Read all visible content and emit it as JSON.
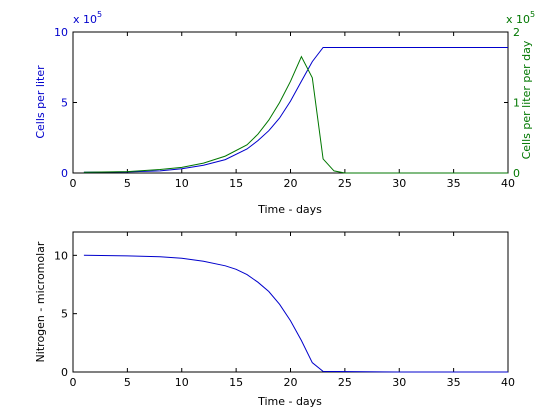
{
  "colors": {
    "series1": "#0000cc",
    "series2": "#007700",
    "axis": "#000000",
    "background": "#ffffff"
  },
  "chart_data": [
    {
      "type": "line",
      "xlabel": "Time - days",
      "ylabel_left": "Cells per liter",
      "ylabel_right": "Cells per liter per day",
      "left_multiplier": "x 10",
      "left_exponent": "5",
      "right_multiplier": "x 10",
      "right_exponent": "5",
      "xlim": [
        0,
        40
      ],
      "ylim_left": [
        0,
        10
      ],
      "ylim_right": [
        0,
        2
      ],
      "xticks": [
        0,
        5,
        10,
        15,
        20,
        25,
        30,
        35,
        40
      ],
      "yticks_left": [
        0,
        5,
        10
      ],
      "yticks_right": [
        0,
        1,
        2
      ],
      "grid": false,
      "series": [
        {
          "axis": "left",
          "color": "#0000cc",
          "x": [
            1,
            5,
            8,
            10,
            12,
            14,
            16,
            17,
            18,
            19,
            20,
            21,
            22,
            23,
            30,
            40
          ],
          "y": [
            0.05,
            0.08,
            0.15,
            0.3,
            0.55,
            0.95,
            1.7,
            2.3,
            3.0,
            3.9,
            5.1,
            6.5,
            7.9,
            8.9,
            8.9,
            8.9
          ]
        },
        {
          "axis": "right",
          "color": "#007700",
          "x": [
            1,
            5,
            8,
            10,
            12,
            14,
            16,
            17,
            18,
            19,
            20,
            21,
            22,
            23,
            24,
            25,
            40
          ],
          "y": [
            0.01,
            0.02,
            0.05,
            0.08,
            0.14,
            0.24,
            0.4,
            0.55,
            0.75,
            1.0,
            1.3,
            1.65,
            1.35,
            0.2,
            0.03,
            0.0,
            0.0
          ]
        }
      ]
    },
    {
      "type": "line",
      "xlabel": "Time - days",
      "ylabel": "Nitrogen - micromolar",
      "xlim": [
        0,
        40
      ],
      "ylim": [
        0,
        12
      ],
      "xticks": [
        0,
        5,
        10,
        15,
        20,
        25,
        30,
        35,
        40
      ],
      "yticks": [
        0,
        5,
        10
      ],
      "grid": false,
      "series": [
        {
          "axis": "left",
          "color": "#0000cc",
          "x": [
            1,
            5,
            8,
            10,
            12,
            14,
            15,
            16,
            17,
            18,
            19,
            20,
            21,
            22,
            23,
            30,
            40
          ],
          "y": [
            10.0,
            9.95,
            9.88,
            9.75,
            9.5,
            9.1,
            8.8,
            8.35,
            7.7,
            6.9,
            5.8,
            4.4,
            2.7,
            0.8,
            0.05,
            0.0,
            0.0
          ]
        }
      ]
    }
  ]
}
